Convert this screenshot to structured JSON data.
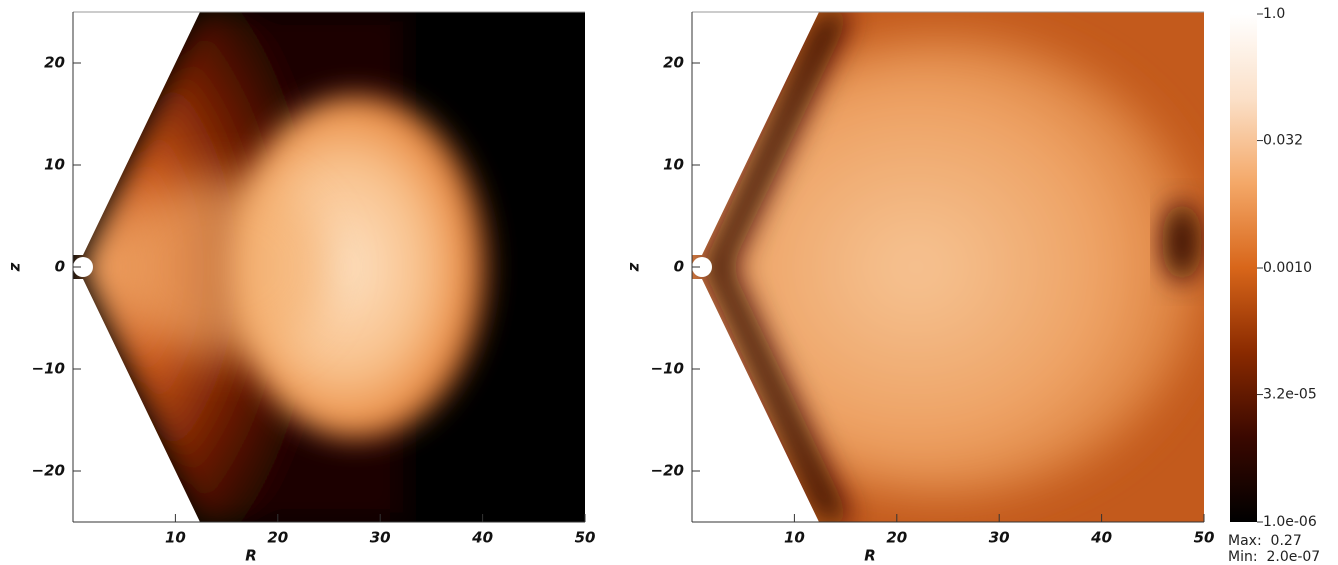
{
  "chart_data": [
    {
      "type": "heatmap",
      "xlabel": "R",
      "ylabel": "z",
      "xlim": [
        0,
        50
      ],
      "ylim": [
        -25,
        25
      ],
      "xticks": [
        10,
        20,
        30,
        40,
        50
      ],
      "yticks": [
        {
          "value": -20,
          "label": "−20"
        },
        {
          "value": -10,
          "label": "−10"
        },
        0,
        10,
        20
      ]
    },
    {
      "type": "heatmap",
      "xlabel": "R",
      "ylabel": "z",
      "xlim": [
        0,
        50
      ],
      "ylim": [
        -25,
        25
      ],
      "xticks": [
        10,
        20,
        30,
        40,
        50
      ],
      "yticks": [
        {
          "value": -20,
          "label": "−20"
        },
        {
          "value": -10,
          "label": "−10"
        },
        0,
        10,
        20
      ],
      "colorbar": {
        "scale": "log",
        "lim": [
          1e-06,
          1.0
        ],
        "colormap": [
          "#000000",
          "#3a0800",
          "#8a2a00",
          "#d8661a",
          "#f4a868",
          "#fbe0c8",
          "#ffffff"
        ],
        "ticks": [
          {
            "value": 1.0,
            "label": "1.0"
          },
          {
            "value": 0.032,
            "label": "0.032"
          },
          {
            "value": 0.001,
            "label": "0.0010"
          },
          {
            "value": 3.2e-05,
            "label": "3.2e-05"
          },
          {
            "value": 1e-06,
            "label": "1.0e-06"
          }
        ]
      },
      "annotations": [
        "Max:  0.27",
        "Min:  2.0e-07"
      ]
    }
  ]
}
